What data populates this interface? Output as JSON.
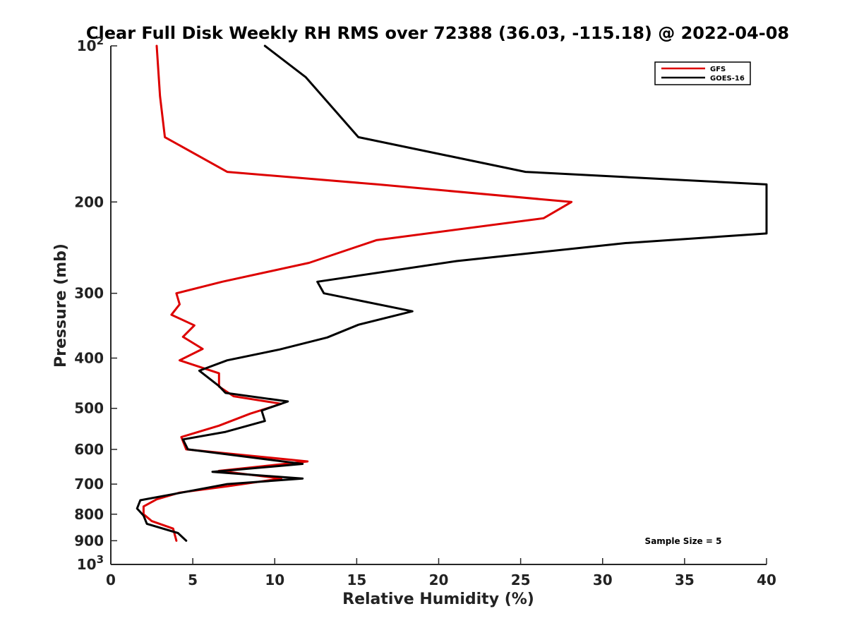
{
  "chart_data": {
    "type": "line",
    "title": "Clear Full Disk Weekly RH RMS over 72388 (36.03, -115.18) @ 2022-04-08",
    "xlabel": "Relative Humidity (%)",
    "ylabel": "Pressure (mb)",
    "xlim": [
      0,
      40
    ],
    "ylim": [
      100,
      1000
    ],
    "yscale": "log",
    "y_reversed": true,
    "grid": false,
    "legend_position": "top-right",
    "x_ticks": [
      0,
      5,
      10,
      15,
      20,
      25,
      30,
      35,
      40
    ],
    "x_tick_labels": [
      "0",
      "5",
      "10",
      "15",
      "20",
      "25",
      "30",
      "35",
      "40"
    ],
    "y_ticks": [
      100,
      200,
      300,
      400,
      500,
      600,
      700,
      800,
      900,
      1000
    ],
    "y_tick_labels": [
      {
        "base": "10",
        "exp": "2"
      },
      {
        "base": "200",
        "exp": ""
      },
      {
        "base": "300",
        "exp": ""
      },
      {
        "base": "400",
        "exp": ""
      },
      {
        "base": "500",
        "exp": ""
      },
      {
        "base": "600",
        "exp": ""
      },
      {
        "base": "700",
        "exp": ""
      },
      {
        "base": "800",
        "exp": ""
      },
      {
        "base": "900",
        "exp": ""
      },
      {
        "base": "10",
        "exp": "3"
      }
    ],
    "annotation": "Sample Size = 5",
    "series": [
      {
        "name": "GFS",
        "color": "#dd0000",
        "points": [
          [
            2.8,
            100
          ],
          [
            3.0,
            125
          ],
          [
            3.3,
            150
          ],
          [
            7.1,
            175
          ],
          [
            16.3,
            185
          ],
          [
            28.1,
            200
          ],
          [
            26.4,
            215
          ],
          [
            16.2,
            237
          ],
          [
            12.1,
            262
          ],
          [
            6.8,
            285
          ],
          [
            4.0,
            300
          ],
          [
            4.2,
            315
          ],
          [
            3.7,
            330
          ],
          [
            5.1,
            346
          ],
          [
            4.4,
            364
          ],
          [
            5.6,
            384
          ],
          [
            4.2,
            404
          ],
          [
            6.6,
            428
          ],
          [
            6.6,
            454
          ],
          [
            7.5,
            474
          ],
          [
            10.4,
            490
          ],
          [
            8.5,
            512
          ],
          [
            6.6,
            540
          ],
          [
            4.3,
            568
          ],
          [
            4.6,
            600
          ],
          [
            12.0,
            633
          ],
          [
            6.6,
            660
          ],
          [
            10.4,
            683
          ],
          [
            7.1,
            707
          ],
          [
            4.2,
            727
          ],
          [
            2.8,
            749
          ],
          [
            2.0,
            773
          ],
          [
            2.0,
            800
          ],
          [
            2.5,
            825
          ],
          [
            3.8,
            853
          ],
          [
            4.0,
            900
          ]
        ]
      },
      {
        "name": "GOES-16",
        "color": "#000000",
        "points": [
          [
            9.4,
            100
          ],
          [
            11.9,
            115
          ],
          [
            15.1,
            150
          ],
          [
            25.3,
            175
          ],
          [
            40.0,
            185
          ],
          [
            40.0,
            230
          ],
          [
            31.4,
            240
          ],
          [
            21.1,
            260
          ],
          [
            12.6,
            285
          ],
          [
            13.0,
            300
          ],
          [
            18.4,
            325
          ],
          [
            15.1,
            345
          ],
          [
            13.2,
            365
          ],
          [
            10.3,
            385
          ],
          [
            7.1,
            404
          ],
          [
            5.4,
            423
          ],
          [
            6.6,
            453
          ],
          [
            7.0,
            467
          ],
          [
            10.8,
            485
          ],
          [
            9.2,
            505
          ],
          [
            9.4,
            529
          ],
          [
            7.0,
            555
          ],
          [
            4.4,
            574
          ],
          [
            4.7,
            600
          ],
          [
            11.7,
            640
          ],
          [
            6.2,
            663
          ],
          [
            11.7,
            683
          ],
          [
            7.1,
            700
          ],
          [
            4.2,
            728
          ],
          [
            1.8,
            752
          ],
          [
            1.6,
            780
          ],
          [
            2.0,
            805
          ],
          [
            2.2,
            835
          ],
          [
            4.1,
            870
          ],
          [
            4.6,
            900
          ]
        ]
      }
    ]
  }
}
